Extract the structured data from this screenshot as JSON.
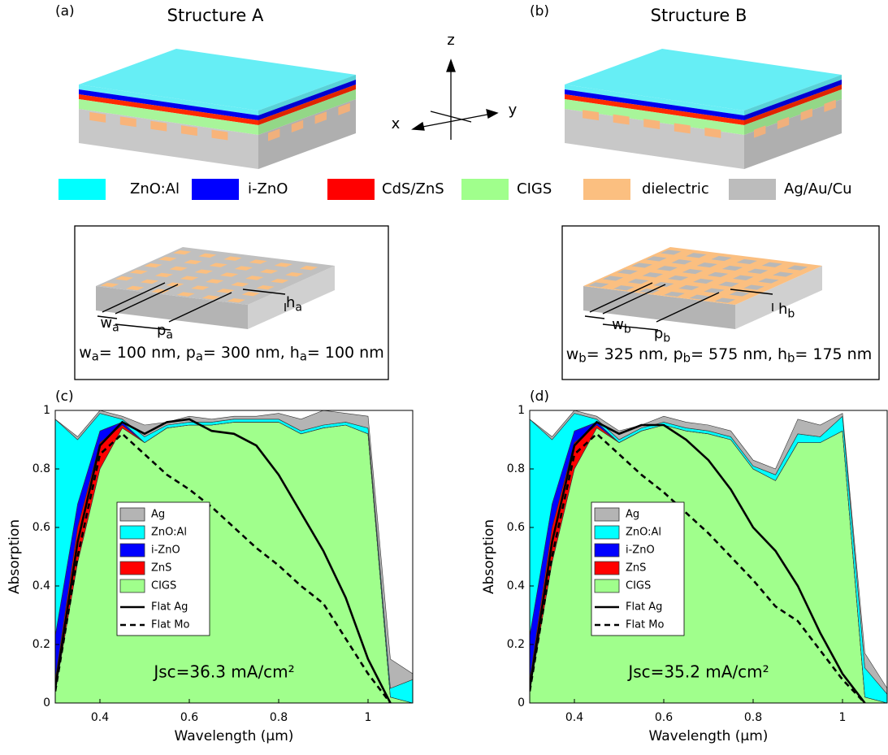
{
  "panels": [
    {
      "label": "(a)",
      "title": "Structure A"
    },
    {
      "label": "(b)",
      "title": "Structure B"
    }
  ],
  "axes_labels": {
    "x": "x",
    "y": "y",
    "z": "z"
  },
  "materials": [
    "ZnO:Al",
    "i-ZnO",
    "CdS/ZnS",
    "CIGS",
    "dielectric",
    "Ag/Au/Cu"
  ],
  "insets": [
    {
      "w": [
        "w",
        "a"
      ],
      "p": [
        "p",
        "a"
      ],
      "h": [
        "h",
        "a"
      ],
      "caption": [
        "w",
        "a",
        "= 100 nm, p",
        "a",
        "= 300 nm, h",
        "a",
        "= 100 nm"
      ]
    },
    {
      "w": [
        "w",
        "b"
      ],
      "p": [
        "p",
        "b"
      ],
      "h": [
        "h",
        "b"
      ],
      "caption": [
        "w",
        "b",
        "= 325 nm, p",
        "b",
        "= 575 nm, h",
        "b",
        "= 175 nm"
      ]
    }
  ],
  "chart_data": [
    {
      "type": "area",
      "label": "(c)",
      "xlabel": "Wavelength (µm)",
      "ylabel": "Absorption",
      "annotation": "Jsc=36.3 mA/cm²",
      "x": [
        0.3,
        0.35,
        0.4,
        0.45,
        0.5,
        0.55,
        0.6,
        0.65,
        0.7,
        0.75,
        0.8,
        0.85,
        0.9,
        0.95,
        1.0,
        1.05,
        1.1
      ],
      "series": [
        {
          "name": "Ag",
          "color": "#b4b4b4",
          "values": [
            0,
            0.01,
            0.01,
            0.01,
            0.04,
            0.01,
            0.02,
            0.01,
            0.01,
            0.01,
            0.02,
            0.04,
            0.05,
            0.03,
            0.04,
            0.1,
            0.02
          ]
        },
        {
          "name": "ZnO:Al",
          "color": "#00ffff",
          "values": [
            0.74,
            0.22,
            0.06,
            0.01,
            0.02,
            0.01,
            0.01,
            0.01,
            0.01,
            0.01,
            0.01,
            0.01,
            0.01,
            0.01,
            0.02,
            0.03,
            0.08
          ]
        },
        {
          "name": "i-ZnO",
          "color": "#0000ff",
          "values": [
            0.15,
            0.08,
            0.04,
            0.01,
            0,
            0,
            0,
            0,
            0,
            0,
            0,
            0,
            0,
            0,
            0,
            0,
            0
          ]
        },
        {
          "name": "ZnS",
          "color": "#ff0000",
          "values": [
            0.04,
            0.12,
            0.09,
            0.01,
            0,
            0,
            0,
            0,
            0,
            0,
            0,
            0,
            0,
            0,
            0,
            0,
            0
          ]
        },
        {
          "name": "CIGS",
          "color": "#a0ff8c",
          "values": [
            0.04,
            0.48,
            0.8,
            0.94,
            0.89,
            0.94,
            0.95,
            0.95,
            0.96,
            0.96,
            0.96,
            0.92,
            0.94,
            0.95,
            0.92,
            0.02,
            0
          ]
        }
      ],
      "lines": [
        {
          "name": "Flat Ag",
          "color": "#000000",
          "style": "solid",
          "values": [
            0.05,
            0.55,
            0.88,
            0.96,
            0.92,
            0.96,
            0.97,
            0.93,
            0.92,
            0.88,
            0.78,
            0.65,
            0.52,
            0.36,
            0.15,
            0,
            null
          ]
        },
        {
          "name": "Flat Mo",
          "color": "#000000",
          "style": "dashed",
          "values": [
            0.04,
            0.5,
            0.85,
            0.92,
            0.85,
            0.78,
            0.73,
            0.67,
            0.6,
            0.53,
            0.47,
            0.4,
            0.34,
            0.22,
            0.1,
            0,
            null
          ]
        }
      ],
      "xlim": [
        0.3,
        1.1
      ],
      "ylim": [
        0,
        1
      ],
      "xticks": [
        0.4,
        0.6,
        0.8,
        1
      ],
      "yticks": [
        0,
        0.2,
        0.4,
        0.6,
        0.8,
        1
      ],
      "stacked": true
    },
    {
      "type": "area",
      "label": "(d)",
      "xlabel": "Wavelength (µm)",
      "ylabel": "Absorption",
      "annotation": "Jsc=35.2 mA/cm²",
      "x": [
        0.3,
        0.35,
        0.4,
        0.45,
        0.5,
        0.55,
        0.6,
        0.65,
        0.7,
        0.75,
        0.8,
        0.85,
        0.9,
        0.95,
        1.0,
        1.05,
        1.1
      ],
      "series": [
        {
          "name": "Ag",
          "color": "#b4b4b4",
          "values": [
            0,
            0.01,
            0.01,
            0.01,
            0.03,
            0.01,
            0.02,
            0.02,
            0.02,
            0.02,
            0.02,
            0.02,
            0.05,
            0.04,
            0.01,
            0.05,
            0.02
          ]
        },
        {
          "name": "ZnO:Al",
          "color": "#00ffff",
          "values": [
            0.74,
            0.22,
            0.06,
            0.01,
            0.01,
            0.01,
            0.01,
            0.01,
            0.01,
            0.01,
            0.01,
            0.02,
            0.03,
            0.02,
            0.05,
            0.1,
            0.03
          ]
        },
        {
          "name": "i-ZnO",
          "color": "#0000ff",
          "values": [
            0.15,
            0.08,
            0.04,
            0.01,
            0,
            0,
            0,
            0,
            0,
            0,
            0,
            0,
            0,
            0,
            0,
            0,
            0
          ]
        },
        {
          "name": "ZnS",
          "color": "#ff0000",
          "values": [
            0.04,
            0.12,
            0.09,
            0.01,
            0,
            0,
            0,
            0,
            0,
            0,
            0,
            0,
            0,
            0,
            0,
            0,
            0
          ]
        },
        {
          "name": "CIGS",
          "color": "#a0ff8c",
          "values": [
            0.04,
            0.48,
            0.8,
            0.94,
            0.89,
            0.93,
            0.95,
            0.93,
            0.92,
            0.9,
            0.8,
            0.76,
            0.89,
            0.89,
            0.93,
            0.02,
            0
          ]
        }
      ],
      "lines": [
        {
          "name": "Flat Ag",
          "color": "#000000",
          "style": "solid",
          "values": [
            0.05,
            0.55,
            0.88,
            0.96,
            0.92,
            0.95,
            0.95,
            0.9,
            0.83,
            0.73,
            0.6,
            0.52,
            0.4,
            0.24,
            0.1,
            0,
            null
          ]
        },
        {
          "name": "Flat Mo",
          "color": "#000000",
          "style": "dashed",
          "values": [
            0.04,
            0.5,
            0.85,
            0.92,
            0.85,
            0.78,
            0.72,
            0.65,
            0.58,
            0.5,
            0.42,
            0.33,
            0.28,
            0.18,
            0.08,
            0,
            null
          ]
        }
      ],
      "xlim": [
        0.3,
        1.1
      ],
      "ylim": [
        0,
        1
      ],
      "xticks": [
        0.4,
        0.6,
        0.8,
        1
      ],
      "yticks": [
        0,
        0.2,
        0.4,
        0.6,
        0.8,
        1
      ],
      "stacked": true
    }
  ]
}
